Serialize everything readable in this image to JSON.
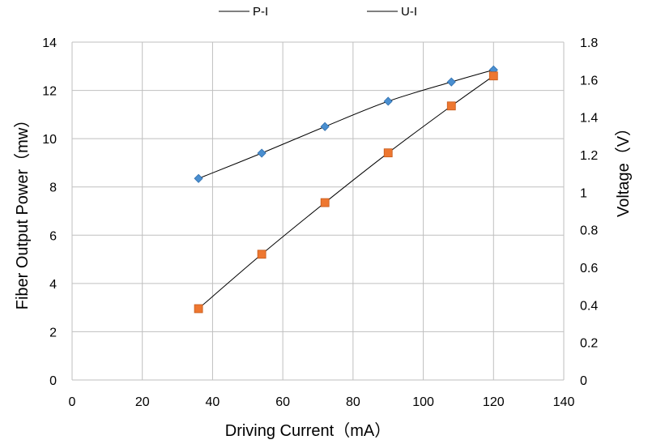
{
  "chart_data": {
    "type": "line",
    "title": "",
    "xlabel": "Driving Current（mA）",
    "ylabel": "Fiber Output Power（mw）",
    "y2label": "Voltage（V）",
    "xlim": [
      0,
      140
    ],
    "ylim": [
      0,
      14
    ],
    "y2lim": [
      0,
      1.8
    ],
    "xticks": [
      "0",
      "20",
      "40",
      "60",
      "80",
      "100",
      "120",
      "140"
    ],
    "yticks": [
      "0",
      "2",
      "4",
      "6",
      "8",
      "10",
      "12",
      "14"
    ],
    "y2ticks": [
      "0",
      "0.2",
      "0.4",
      "0.6",
      "0.8",
      "1",
      "1.2",
      "1.4",
      "1.6",
      "1.8"
    ],
    "grid": true,
    "legend_position": "top",
    "series": [
      {
        "name": "P-I",
        "axis": "left",
        "marker": "diamond",
        "marker_color": "#4a8fd0",
        "line_color": "#000000",
        "x": [
          36,
          54,
          72,
          90,
          108,
          120
        ],
        "y": [
          8.35,
          9.4,
          10.5,
          11.55,
          12.35,
          12.85
        ]
      },
      {
        "name": "U-I",
        "axis": "right",
        "marker": "square",
        "marker_color": "#ee7730",
        "line_color": "#000000",
        "x": [
          36,
          54,
          72,
          90,
          108,
          120
        ],
        "y": [
          0.38,
          0.67,
          0.945,
          1.21,
          1.46,
          1.62
        ]
      }
    ]
  }
}
